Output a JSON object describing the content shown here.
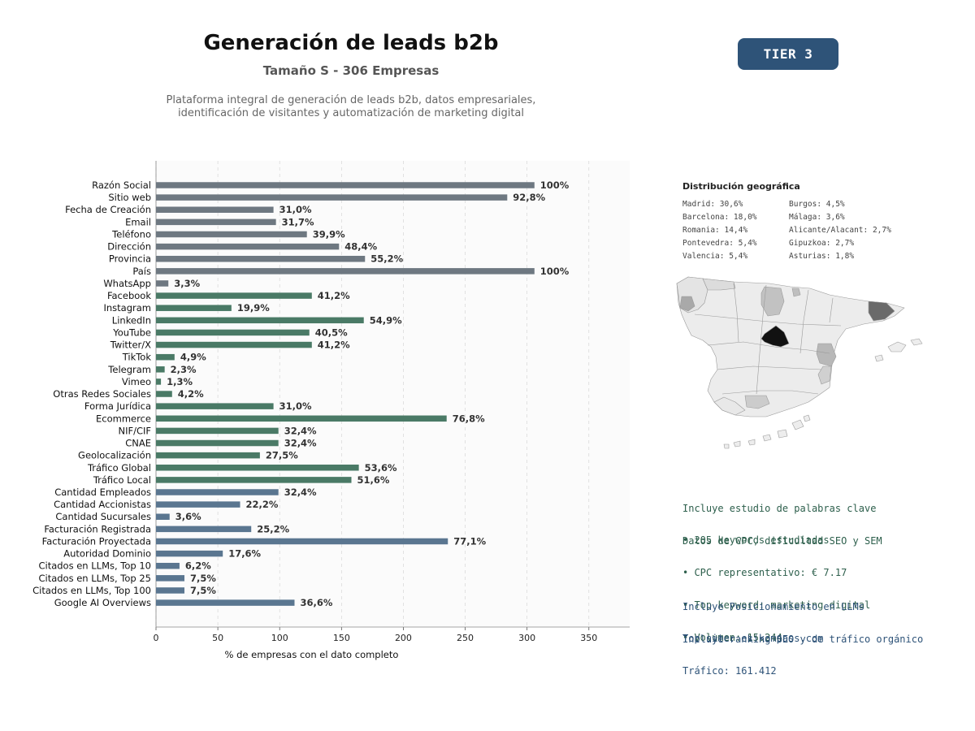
{
  "header": {
    "title": "Generación de leads b2b",
    "subtitle": "Tamaño S - 306 Empresas",
    "description_line1": "Plataforma integral de generación de leads b2b, datos empresariales,",
    "description_line2": "identificación de visitantes y automatización de marketing digital",
    "tier": "TIER 3"
  },
  "colors": {
    "gray_bar": "#6e7881",
    "green_bar": "#4a7a66",
    "blue_bar": "#5a7690",
    "map_highlight": "#111111"
  },
  "chart_data": {
    "type": "bar",
    "orientation": "horizontal",
    "xlabel": "% de empresas con el dato completo",
    "xlim": [
      0,
      383
    ],
    "xticks": [
      0,
      50,
      100,
      150,
      200,
      250,
      300,
      350
    ],
    "grid": "vertical dashed",
    "categories": [
      "Razón Social",
      "Sitio web",
      "Fecha de Creación",
      "Email",
      "Teléfono",
      "Dirección",
      "Provincia",
      "País",
      "WhatsApp",
      "Facebook",
      "Instagram",
      "LinkedIn",
      "YouTube",
      "Twitter/X",
      "TikTok",
      "Telegram",
      "Vimeo",
      "Otras Redes Sociales",
      "Forma Jurídica",
      "Ecommerce",
      "NIF/CIF",
      "CNAE",
      "Geolocalización",
      "Tráfico Global",
      "Tráfico Local",
      "Cantidad Empleados",
      "Cantidad Accionistas",
      "Cantidad Sucursales",
      "Facturación Registrada",
      "Facturación Proyectada",
      "Autoridad Dominio",
      "Citados en LLMs, Top 10",
      "Citados en LLMs, Top 25",
      "Citados en LLMs, Top 100",
      "Google AI Overviews"
    ],
    "values": [
      306,
      284,
      95,
      97,
      122,
      148,
      169,
      306,
      10,
      126,
      61,
      168,
      124,
      126,
      15,
      7,
      4,
      13,
      95,
      235,
      99,
      99,
      84,
      164,
      158,
      99,
      68,
      11,
      77,
      236,
      54,
      19,
      23,
      23,
      112
    ],
    "labels": [
      "100%",
      "92,8%",
      "31,0%",
      "31,7%",
      "39,9%",
      "48,4%",
      "55,2%",
      "100%",
      "3,3%",
      "41,2%",
      "19,9%",
      "54,9%",
      "40,5%",
      "41,2%",
      "4,9%",
      "2,3%",
      "1,3%",
      "4,2%",
      "31,0%",
      "76,8%",
      "32,4%",
      "32,4%",
      "27,5%",
      "53,6%",
      "51,6%",
      "32,4%",
      "22,2%",
      "3,6%",
      "25,2%",
      "77,1%",
      "17,6%",
      "6,2%",
      "7,5%",
      "7,5%",
      "36,6%"
    ],
    "groups": [
      "gray",
      "gray",
      "gray",
      "gray",
      "gray",
      "gray",
      "gray",
      "gray",
      "gray",
      "green",
      "green",
      "green",
      "green",
      "green",
      "green",
      "green",
      "green",
      "green",
      "green",
      "green",
      "green",
      "green",
      "green",
      "green",
      "green",
      "blue",
      "blue",
      "blue",
      "blue",
      "blue",
      "blue",
      "blue",
      "blue",
      "blue",
      "blue"
    ]
  },
  "geo": {
    "title": "Distribución geográfica",
    "items": [
      {
        "name": "Madrid: 30,6%"
      },
      {
        "name": "Barcelona: 18,0%"
      },
      {
        "name": "Romania: 14,4%"
      },
      {
        "name": "Pontevedra: 5,4%"
      },
      {
        "name": "Valencia: 5,4%"
      },
      {
        "name": "Burgos: 4,5%"
      },
      {
        "name": "Málaga: 3,6%"
      },
      {
        "name": "Alicante/Alacant: 2,7%"
      },
      {
        "name": "Gipuzkoa: 2,7%"
      },
      {
        "name": "Asturias: 1,8%"
      }
    ]
  },
  "seo": {
    "line1": "Incluye estudio de palabras clave",
    "line2": "Datos de CPC, dificultad SEO y SEM",
    "bullet1": "• 205 keywords estudiadas",
    "bullet2": "• CPC representativo: € 7.17",
    "bullet3": "• Top keyword: marketing digital",
    "bullet4": "• Volumen: 15.244"
  },
  "llm": {
    "line1": "Incluye Posicionamiento en LLMs",
    "line2": "Incluye ranking SEO y de tráfico orgánico",
    "top_site": "Top site: es.kompass.com",
    "traffic": "Tráfico: 161.412"
  }
}
